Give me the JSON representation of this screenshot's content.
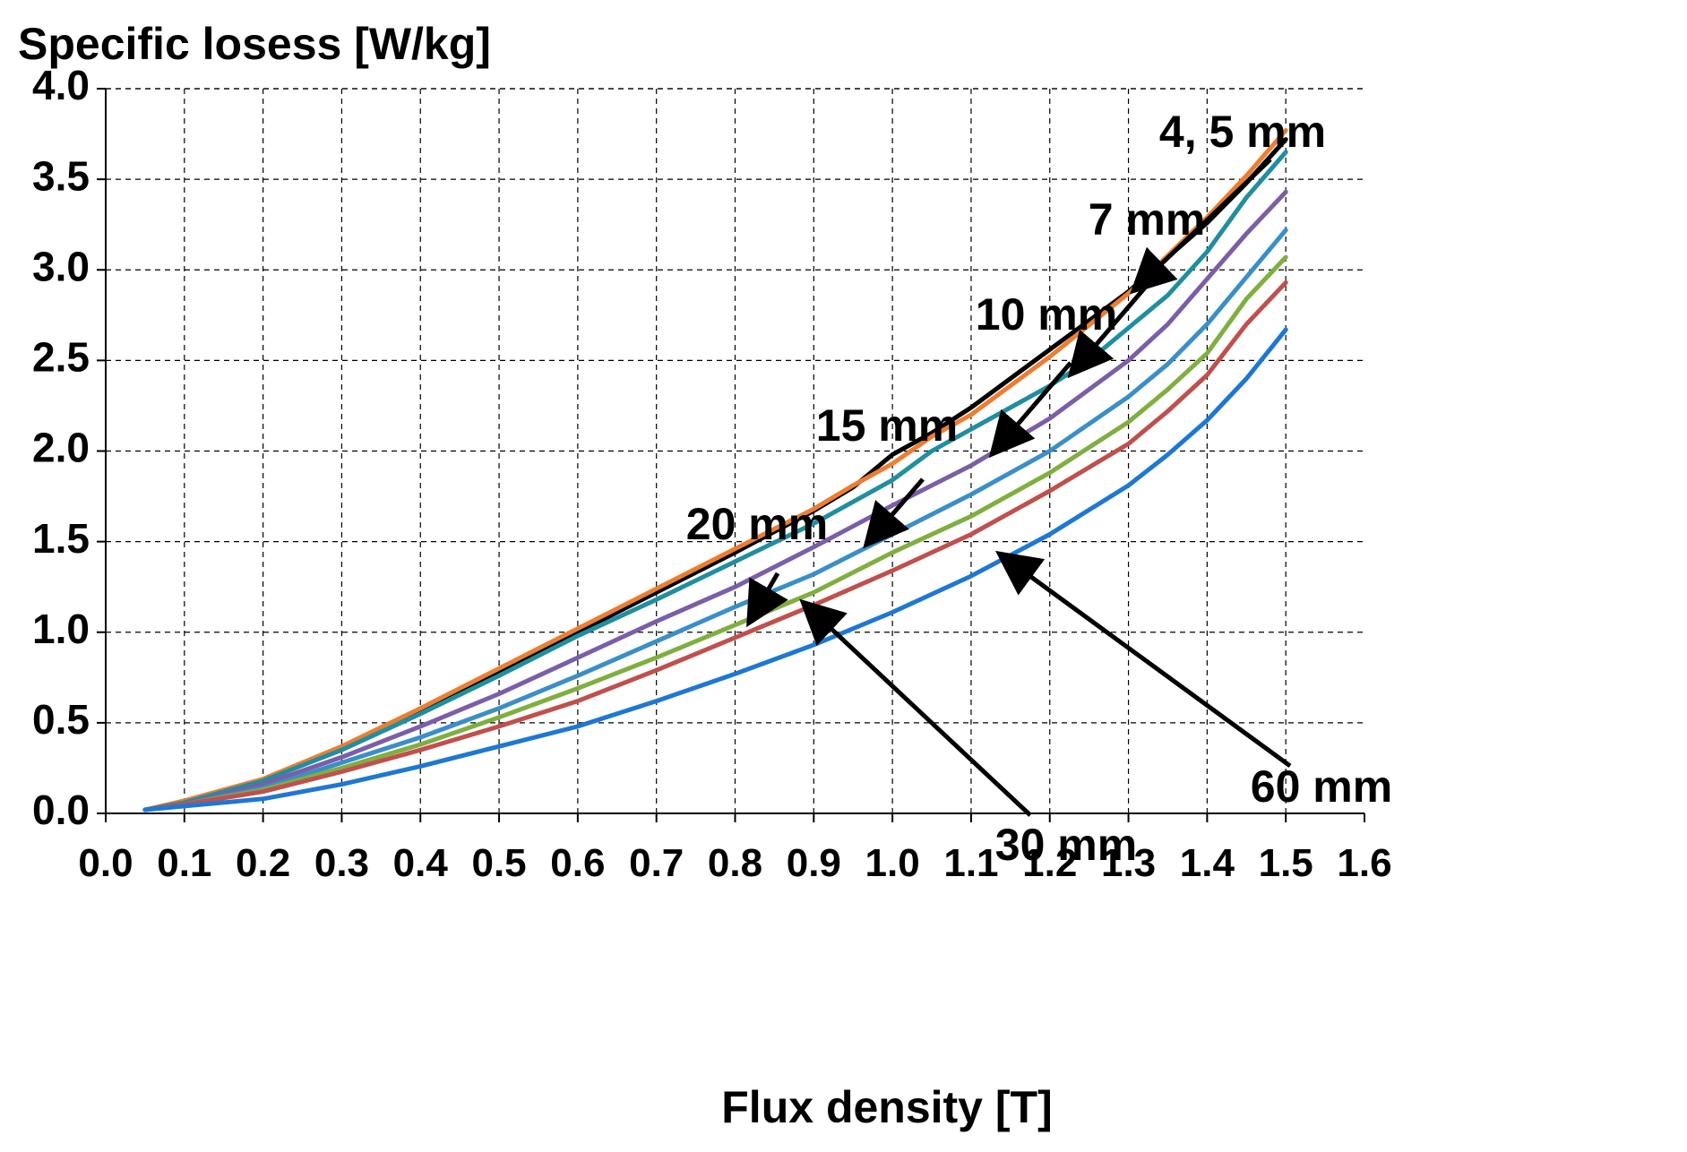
{
  "chart_data": {
    "type": "line",
    "title": "",
    "ylabel": "Specific losess [W/kg]",
    "xlabel": "Flux density [T]",
    "xlim": [
      0.0,
      1.6
    ],
    "ylim": [
      0.0,
      4.0
    ],
    "x_ticks": [
      "0.0",
      "0.1",
      "0.2",
      "0.3",
      "0.4",
      "0.5",
      "0.6",
      "0.7",
      "0.8",
      "0.9",
      "1.0",
      "1.1",
      "1.2",
      "1.3",
      "1.4",
      "1.5",
      "1.6"
    ],
    "y_ticks": [
      "0.0",
      "0.5",
      "1.0",
      "1.5",
      "2.0",
      "2.5",
      "3.0",
      "3.5",
      "4.0"
    ],
    "grid": true,
    "series": [
      {
        "name": "4 mm",
        "color": "#000000",
        "x": [
          0.05,
          0.1,
          0.2,
          0.3,
          0.4,
          0.5,
          0.6,
          0.7,
          0.8,
          0.9,
          0.95,
          1.0,
          1.05,
          1.1,
          1.2,
          1.3,
          1.4,
          1.45,
          1.5
        ],
        "y": [
          0.02,
          0.06,
          0.18,
          0.36,
          0.56,
          0.78,
          1.0,
          1.22,
          1.44,
          1.67,
          1.8,
          1.98,
          2.1,
          2.24,
          2.56,
          2.88,
          3.26,
          3.48,
          3.72
        ]
      },
      {
        "name": "5 mm",
        "color": "#ED7D31",
        "x": [
          0.05,
          0.1,
          0.2,
          0.3,
          0.4,
          0.5,
          0.6,
          0.7,
          0.8,
          0.9,
          0.95,
          1.0,
          1.05,
          1.1,
          1.2,
          1.3,
          1.4,
          1.45,
          1.5
        ],
        "y": [
          0.02,
          0.07,
          0.19,
          0.37,
          0.58,
          0.8,
          1.02,
          1.24,
          1.46,
          1.68,
          1.81,
          1.93,
          2.08,
          2.2,
          2.52,
          2.87,
          3.29,
          3.52,
          3.77
        ]
      },
      {
        "name": "7 mm",
        "color": "#1F8FA0",
        "x": [
          0.05,
          0.1,
          0.2,
          0.3,
          0.4,
          0.5,
          0.6,
          0.7,
          0.8,
          0.9,
          1.0,
          1.05,
          1.1,
          1.15,
          1.2,
          1.25,
          1.3,
          1.35,
          1.4,
          1.45,
          1.5
        ],
        "y": [
          0.02,
          0.06,
          0.18,
          0.35,
          0.55,
          0.76,
          0.98,
          1.18,
          1.39,
          1.6,
          1.84,
          2.0,
          2.12,
          2.24,
          2.36,
          2.5,
          2.68,
          2.86,
          3.1,
          3.4,
          3.65
        ]
      },
      {
        "name": "10 mm",
        "color": "#7B5EA7",
        "x": [
          0.05,
          0.1,
          0.2,
          0.3,
          0.4,
          0.5,
          0.6,
          0.7,
          0.8,
          0.9,
          1.0,
          1.1,
          1.2,
          1.3,
          1.35,
          1.4,
          1.45,
          1.5
        ],
        "y": [
          0.02,
          0.05,
          0.16,
          0.31,
          0.48,
          0.66,
          0.86,
          1.06,
          1.25,
          1.47,
          1.7,
          1.92,
          2.18,
          2.5,
          2.7,
          2.95,
          3.2,
          3.43
        ]
      },
      {
        "name": "15 mm",
        "color": "#3A8FC7",
        "x": [
          0.05,
          0.1,
          0.2,
          0.3,
          0.4,
          0.5,
          0.6,
          0.7,
          0.8,
          0.9,
          1.0,
          1.1,
          1.2,
          1.3,
          1.35,
          1.4,
          1.45,
          1.5
        ],
        "y": [
          0.02,
          0.05,
          0.14,
          0.28,
          0.42,
          0.58,
          0.76,
          0.95,
          1.14,
          1.32,
          1.54,
          1.76,
          2.0,
          2.3,
          2.48,
          2.7,
          2.96,
          3.22
        ]
      },
      {
        "name": "20 mm",
        "color": "#7FAF3F",
        "x": [
          0.05,
          0.1,
          0.2,
          0.3,
          0.4,
          0.5,
          0.6,
          0.7,
          0.8,
          0.9,
          1.0,
          1.1,
          1.2,
          1.3,
          1.35,
          1.4,
          1.45,
          1.5
        ],
        "y": [
          0.02,
          0.05,
          0.13,
          0.25,
          0.38,
          0.53,
          0.69,
          0.86,
          1.04,
          1.22,
          1.44,
          1.64,
          1.88,
          2.16,
          2.34,
          2.54,
          2.84,
          3.07
        ]
      },
      {
        "name": "30 mm",
        "color": "#C0504D",
        "x": [
          0.05,
          0.1,
          0.2,
          0.3,
          0.4,
          0.5,
          0.6,
          0.7,
          0.8,
          0.9,
          1.0,
          1.1,
          1.2,
          1.3,
          1.35,
          1.4,
          1.45,
          1.5
        ],
        "y": [
          0.02,
          0.05,
          0.12,
          0.23,
          0.35,
          0.48,
          0.62,
          0.79,
          0.97,
          1.15,
          1.34,
          1.54,
          1.78,
          2.04,
          2.22,
          2.42,
          2.7,
          2.93
        ]
      },
      {
        "name": "60 mm",
        "color": "#1E78D2",
        "x": [
          0.05,
          0.1,
          0.2,
          0.3,
          0.4,
          0.5,
          0.6,
          0.7,
          0.8,
          0.9,
          1.0,
          1.1,
          1.2,
          1.3,
          1.35,
          1.4,
          1.45,
          1.5
        ],
        "y": [
          0.02,
          0.04,
          0.08,
          0.16,
          0.26,
          0.37,
          0.48,
          0.62,
          0.77,
          0.93,
          1.11,
          1.31,
          1.54,
          1.81,
          1.98,
          2.17,
          2.4,
          2.67
        ]
      }
    ],
    "annotations": [
      {
        "text": "4, 5 mm",
        "point": [
          1.31,
          2.9
        ],
        "color": "#000000"
      },
      {
        "text": "7 mm",
        "point": [
          1.23,
          2.44
        ],
        "color": "#000000"
      },
      {
        "text": "10 mm",
        "point": [
          1.13,
          2.0
        ],
        "color": "#000000"
      },
      {
        "text": "15 mm",
        "point": [
          0.97,
          1.5
        ],
        "color": "#000000"
      },
      {
        "text": "20 mm",
        "point": [
          0.82,
          1.07
        ],
        "color": "#000000"
      },
      {
        "text": "30 mm",
        "point": [
          0.89,
          1.15
        ],
        "color": "#000000"
      },
      {
        "text": "60 mm",
        "point": [
          1.14,
          1.42
        ],
        "color": "#000000"
      }
    ]
  }
}
